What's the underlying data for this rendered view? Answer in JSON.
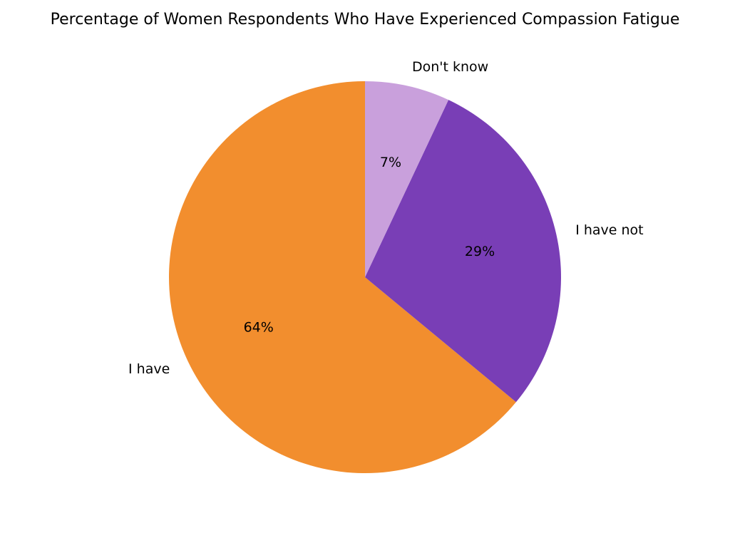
{
  "chart_data": {
    "type": "pie",
    "title": "Percentage of Women Respondents Who Have Experienced Compassion Fatigue",
    "slices": [
      {
        "label": "I have",
        "value": 64,
        "value_label": "64%",
        "color": "#F28E2E"
      },
      {
        "label": "I have not",
        "value": 29,
        "value_label": "29%",
        "color": "#793EB6"
      },
      {
        "label": "Don't know",
        "value": 7,
        "value_label": "7%",
        "color": "#C9A0DC"
      }
    ],
    "start": "top",
    "direction": "counterclockwise",
    "legend": "none"
  }
}
